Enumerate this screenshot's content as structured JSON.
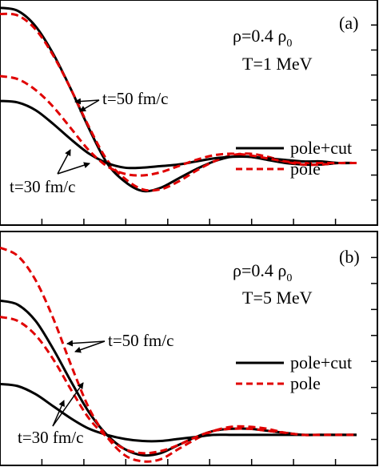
{
  "chart_data": [
    {
      "type": "line",
      "panel_label": "(a)",
      "annotation_density": {
        "text": "ρ=0.4 ρ",
        "sub": "0"
      },
      "annotation_temperature": "T=1 MeV",
      "arrow_labels": [
        "t=50 fm/c",
        "t=30 fm/c"
      ],
      "legend": {
        "position": "right",
        "entries": [
          {
            "label": "pole+cut",
            "style": "solid",
            "color": "#000000"
          },
          {
            "label": "pole",
            "style": "dashed",
            "color": "#e00000"
          }
        ]
      },
      "xlim": [
        0,
        1
      ],
      "ylim": [
        -0.4,
        1.05
      ],
      "series": [
        {
          "label": "t=50 fm/c pole+cut",
          "color": "#000000",
          "dash": false,
          "x": [
            0,
            0.05,
            0.1,
            0.15,
            0.2,
            0.25,
            0.3,
            0.35,
            0.4,
            0.45,
            0.5,
            0.55,
            0.6,
            0.65,
            0.7,
            0.75,
            0.8,
            0.85,
            0.9,
            0.95,
            1.0
          ],
          "y": [
            1.0,
            0.98,
            0.88,
            0.7,
            0.47,
            0.22,
            0.0,
            -0.12,
            -0.18,
            -0.16,
            -0.1,
            -0.04,
            0.01,
            0.04,
            0.04,
            0.02,
            0.0,
            -0.01,
            -0.01,
            0.0,
            0.0
          ]
        },
        {
          "label": "t=50 fm/c pole",
          "color": "#e00000",
          "dash": true,
          "x": [
            0,
            0.05,
            0.1,
            0.15,
            0.2,
            0.25,
            0.3,
            0.35,
            0.4,
            0.45,
            0.5,
            0.55,
            0.6,
            0.65,
            0.7,
            0.75,
            0.8,
            0.85,
            0.9,
            0.95,
            1.0
          ],
          "y": [
            0.96,
            0.95,
            0.86,
            0.69,
            0.47,
            0.23,
            0.02,
            -0.1,
            -0.17,
            -0.17,
            -0.12,
            -0.05,
            0.01,
            0.05,
            0.06,
            0.04,
            0.01,
            -0.01,
            -0.01,
            0.0,
            0.0
          ]
        },
        {
          "label": "t=30 fm/c pole+cut",
          "color": "#000000",
          "dash": false,
          "x": [
            0,
            0.05,
            0.1,
            0.15,
            0.2,
            0.25,
            0.3,
            0.35,
            0.4,
            0.45,
            0.5,
            0.55,
            0.6,
            0.65,
            0.7,
            0.75,
            0.8,
            0.85,
            0.9,
            0.95,
            1.0
          ],
          "y": [
            0.4,
            0.39,
            0.34,
            0.25,
            0.15,
            0.06,
            0.0,
            -0.03,
            -0.03,
            -0.02,
            -0.01,
            0.01,
            0.03,
            0.04,
            0.04,
            0.03,
            0.02,
            0.01,
            0.01,
            0.0,
            0.0
          ]
        },
        {
          "label": "t=30 fm/c pole",
          "color": "#e00000",
          "dash": true,
          "x": [
            0,
            0.05,
            0.1,
            0.15,
            0.2,
            0.25,
            0.3,
            0.35,
            0.4,
            0.45,
            0.5,
            0.55,
            0.6,
            0.65,
            0.7,
            0.75,
            0.8,
            0.85,
            0.9,
            0.95,
            1.0
          ],
          "y": [
            0.56,
            0.54,
            0.47,
            0.36,
            0.22,
            0.08,
            -0.02,
            -0.07,
            -0.08,
            -0.06,
            -0.02,
            0.02,
            0.05,
            0.06,
            0.05,
            0.03,
            0.01,
            0.0,
            0.0,
            0.0,
            0.0
          ]
        }
      ]
    },
    {
      "type": "line",
      "panel_label": "(b)",
      "annotation_density": {
        "text": "ρ=0.4 ρ",
        "sub": "0"
      },
      "annotation_temperature": "T=5 MeV",
      "arrow_labels": [
        "t=50 fm/c",
        "t=30 fm/c"
      ],
      "legend": {
        "position": "right",
        "entries": [
          {
            "label": "pole+cut",
            "style": "solid",
            "color": "#000000"
          },
          {
            "label": "pole",
            "style": "dashed",
            "color": "#e00000"
          }
        ]
      },
      "xlim": [
        0,
        1
      ],
      "ylim": [
        -0.15,
        1.0
      ],
      "series": [
        {
          "label": "t=50 fm/c pole+cut",
          "color": "#000000",
          "dash": false,
          "x": [
            0,
            0.05,
            0.1,
            0.15,
            0.2,
            0.25,
            0.3,
            0.35,
            0.4,
            0.45,
            0.5,
            0.55,
            0.6,
            0.65,
            0.7,
            0.75,
            0.8,
            0.85,
            0.9,
            0.95,
            1.0
          ],
          "y": [
            0.66,
            0.64,
            0.56,
            0.42,
            0.26,
            0.11,
            0.0,
            -0.07,
            -0.1,
            -0.09,
            -0.05,
            -0.01,
            0.02,
            0.03,
            0.03,
            0.02,
            0.01,
            0.0,
            0.0,
            0.0,
            0.0
          ]
        },
        {
          "label": "t=50 fm/c pole",
          "color": "#e00000",
          "dash": true,
          "x": [
            0,
            0.05,
            0.1,
            0.15,
            0.2,
            0.25,
            0.3,
            0.35,
            0.4,
            0.45,
            0.5,
            0.55,
            0.6,
            0.65,
            0.7,
            0.75,
            0.8,
            0.85,
            0.9,
            0.95,
            1.0
          ],
          "y": [
            0.92,
            0.88,
            0.76,
            0.57,
            0.34,
            0.13,
            -0.01,
            -0.1,
            -0.13,
            -0.12,
            -0.07,
            -0.02,
            0.02,
            0.04,
            0.04,
            0.03,
            0.01,
            0.0,
            0.0,
            0.0,
            0.0
          ]
        },
        {
          "label": "t=30 fm/c pole+cut",
          "color": "#000000",
          "dash": false,
          "x": [
            0,
            0.05,
            0.1,
            0.15,
            0.2,
            0.25,
            0.3,
            0.35,
            0.4,
            0.45,
            0.5,
            0.55,
            0.6,
            0.65,
            0.7,
            0.75,
            0.8,
            0.85,
            0.9,
            0.95,
            1.0
          ],
          "y": [
            0.25,
            0.24,
            0.2,
            0.14,
            0.08,
            0.03,
            0.0,
            -0.02,
            -0.03,
            -0.03,
            -0.02,
            -0.01,
            0.0,
            0.0,
            0.0,
            0.0,
            0.0,
            0.0,
            0.0,
            0.0,
            0.0
          ]
        },
        {
          "label": "t=30 fm/c pole",
          "color": "#e00000",
          "dash": true,
          "x": [
            0,
            0.05,
            0.1,
            0.15,
            0.2,
            0.25,
            0.3,
            0.35,
            0.4,
            0.45,
            0.5,
            0.55,
            0.6,
            0.65,
            0.7,
            0.75,
            0.8,
            0.85,
            0.9,
            0.95,
            1.0
          ],
          "y": [
            0.58,
            0.56,
            0.49,
            0.37,
            0.22,
            0.08,
            -0.01,
            -0.07,
            -0.09,
            -0.08,
            -0.05,
            -0.01,
            0.02,
            0.03,
            0.03,
            0.02,
            0.01,
            0.0,
            0.0,
            0.0,
            0.0
          ]
        }
      ]
    }
  ]
}
